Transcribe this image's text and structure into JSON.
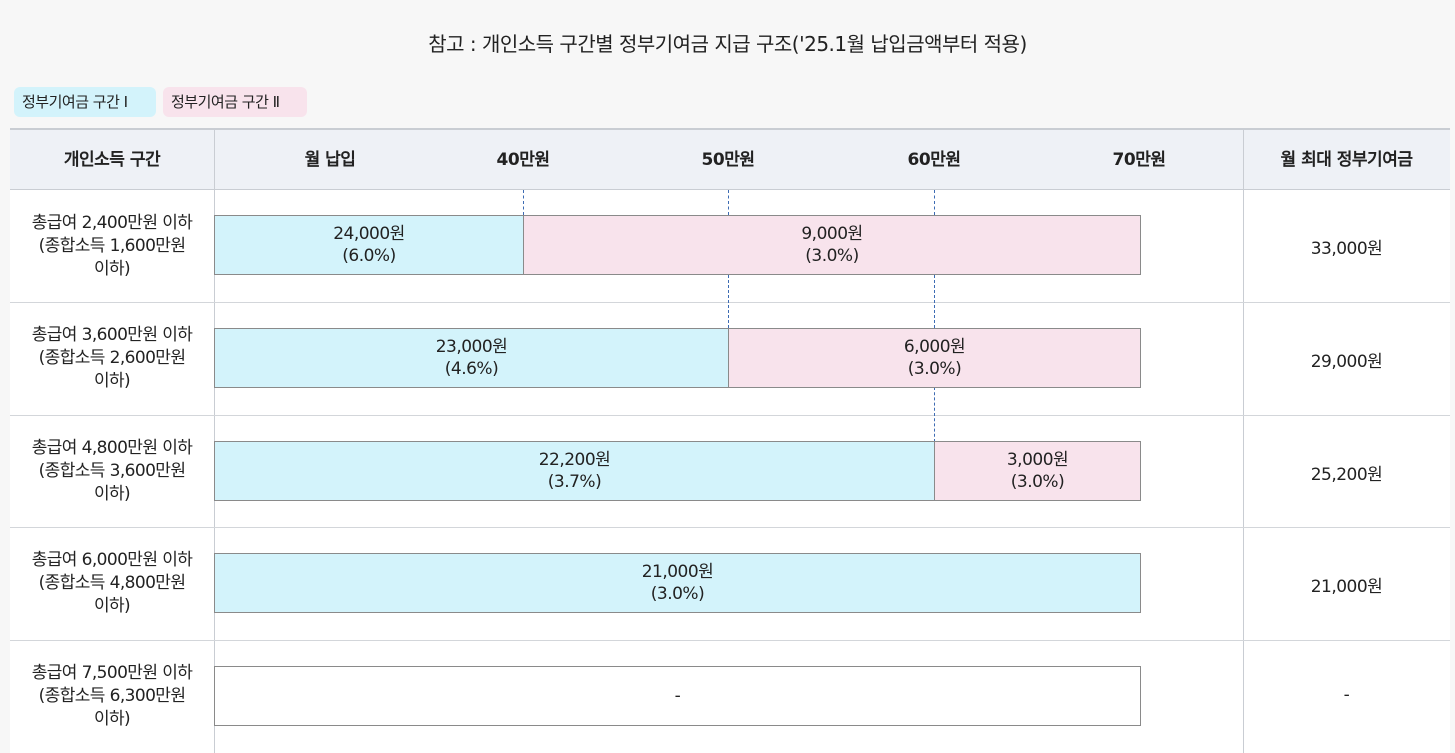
{
  "title": "참고 : 개인소득 구간별 정부기여금 지급 구조('25.1월 납입금액부터 적용)",
  "legend": {
    "band1": "정부기여금 구간 Ⅰ",
    "band2": "정부기여금 구간 Ⅱ",
    "band1_color": "#d3f3fb",
    "band2_color": "#f8e3ec"
  },
  "header": {
    "income_band": "개인소득 구간",
    "monthly_payment": "월 납입",
    "tick_40": "40만원",
    "tick_50": "50만원",
    "tick_60": "60만원",
    "tick_70": "70만원",
    "max_contribution": "월 최대 정부기여금"
  },
  "rows": [
    {
      "label1": "총급여 2,400만원 이하",
      "label2": "(종합소득 1,600만원",
      "label3": "이하)",
      "band1_amount": "24,000원",
      "band1_rate": "(6.0%)",
      "band2_amount": "9,000원",
      "band2_rate": "(3.0%)",
      "band1_limit_manwon": 40,
      "max": "33,000원"
    },
    {
      "label1": "총급여 3,600만원 이하",
      "label2": "(종합소득 2,600만원",
      "label3": "이하)",
      "band1_amount": "23,000원",
      "band1_rate": "(4.6%)",
      "band2_amount": "6,000원",
      "band2_rate": "(3.0%)",
      "band1_limit_manwon": 50,
      "max": "29,000원"
    },
    {
      "label1": "총급여 4,800만원 이하",
      "label2": "(종합소득 3,600만원",
      "label3": "이하)",
      "band1_amount": "22,200원",
      "band1_rate": "(3.7%)",
      "band2_amount": "3,000원",
      "band2_rate": "(3.0%)",
      "band1_limit_manwon": 60,
      "max": "25,200원"
    },
    {
      "label1": "총급여 6,000만원 이하",
      "label2": "(종합소득 4,800만원",
      "label3": "이하)",
      "band1_amount": "21,000원",
      "band1_rate": "(3.0%)",
      "band1_limit_manwon": 70,
      "max": "21,000원"
    },
    {
      "label1": "총급여 7,500만원 이하",
      "label2": "(종합소득 6,300만원",
      "label3": "이하)",
      "none_text": "-",
      "max": "-"
    }
  ]
}
